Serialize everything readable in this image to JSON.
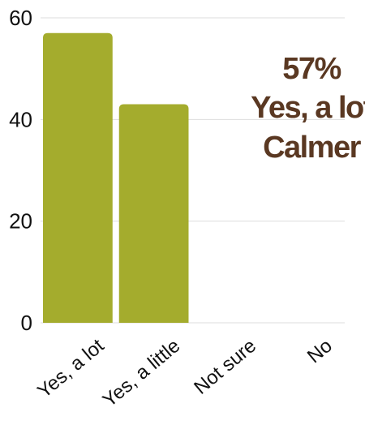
{
  "chart_data": {
    "type": "bar",
    "categories": [
      "Yes, a lot",
      "Yes, a little",
      "Not sure",
      "No"
    ],
    "values": [
      57,
      43,
      0,
      0
    ],
    "ylim": [
      0,
      60
    ],
    "yticks": [
      "0",
      "20",
      "40",
      "60"
    ],
    "grid": true,
    "bar_color": "#a4ac2d",
    "annotation": [
      "57%",
      "Yes, a lot",
      "Calmer"
    ],
    "annotation_color": "#5a3822"
  }
}
